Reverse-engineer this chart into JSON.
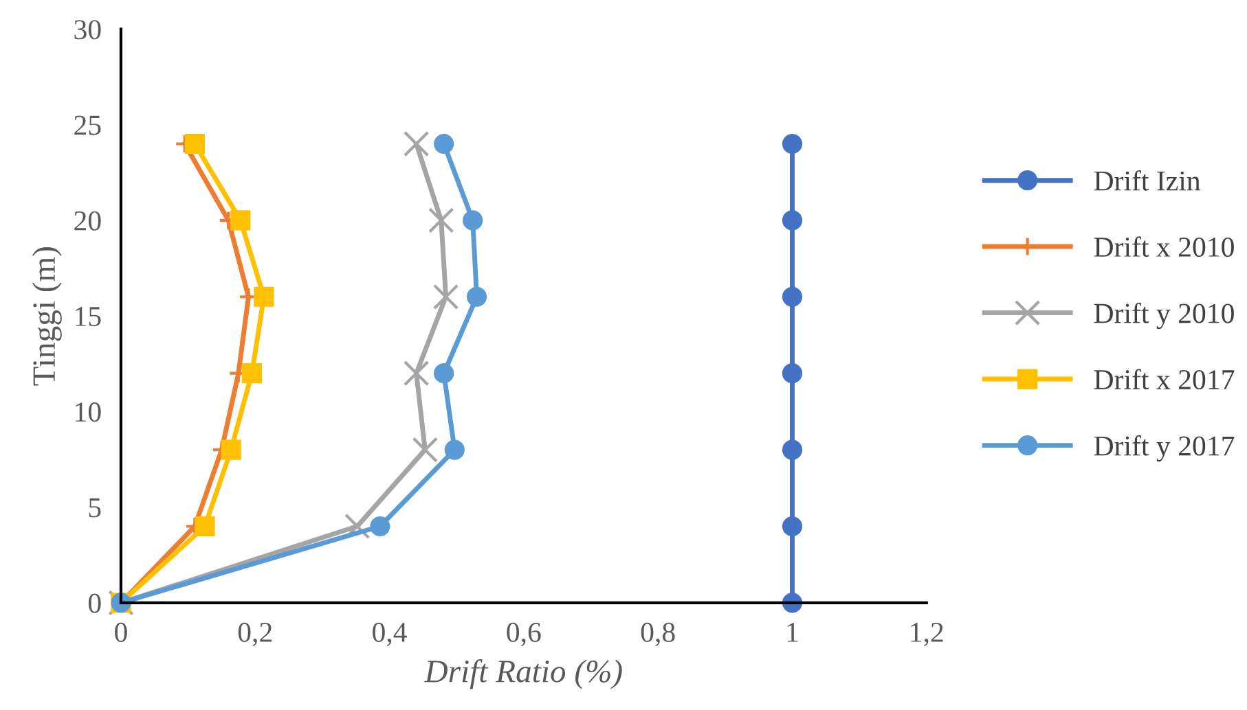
{
  "chart_data": {
    "type": "line",
    "xlabel": "Drift Ratio (%)",
    "ylabel": "Tinggi (m)",
    "xlim": [
      0,
      1.2
    ],
    "ylim": [
      0,
      30
    ],
    "xticks": [
      0,
      {
        "value": 0.2,
        "label": "0,2"
      },
      {
        "value": 0.4,
        "label": "0,4"
      },
      {
        "value": 0.6,
        "label": "0,6"
      },
      {
        "value": 0.8,
        "label": "0,8"
      },
      1,
      {
        "value": 1.2,
        "label": "1,2"
      }
    ],
    "yticks": [
      0,
      5,
      10,
      15,
      20,
      25,
      30
    ],
    "grid": false,
    "legend": "right",
    "line_style": "solid",
    "series": [
      {
        "name": "Drift Izin",
        "color": "#4472c4",
        "marker": "circle",
        "x": [
          1,
          1,
          1,
          1,
          1,
          1,
          1
        ],
        "values": [
          0,
          4,
          8,
          12,
          16,
          20,
          24
        ]
      },
      {
        "name": "Drift x 2010",
        "color": "#ed7d31",
        "marker": "plus",
        "x": [
          0,
          0.11,
          0.15,
          0.175,
          0.19,
          0.16,
          0.095
        ],
        "values": [
          0,
          4,
          8,
          12,
          16,
          20,
          24
        ]
      },
      {
        "name": "Drift y 2010",
        "color": "#a5a5a5",
        "marker": "cross",
        "x": [
          0,
          0.352,
          0.453,
          0.44,
          0.484,
          0.477,
          0.44
        ],
        "values": [
          0,
          4,
          8,
          12,
          16,
          20,
          24
        ]
      },
      {
        "name": "Drift x 2017",
        "color": "#ffc000",
        "marker": "square",
        "x": [
          0,
          0.125,
          0.164,
          0.195,
          0.213,
          0.178,
          0.11
        ],
        "values": [
          0,
          4,
          8,
          12,
          16,
          20,
          24
        ]
      },
      {
        "name": "Drift y 2017",
        "color": "#5b9bd5",
        "marker": "circle",
        "x": [
          0,
          0.386,
          0.497,
          0.481,
          0.53,
          0.524,
          0.481
        ],
        "values": [
          0,
          4,
          8,
          12,
          16,
          20,
          24
        ]
      }
    ]
  }
}
